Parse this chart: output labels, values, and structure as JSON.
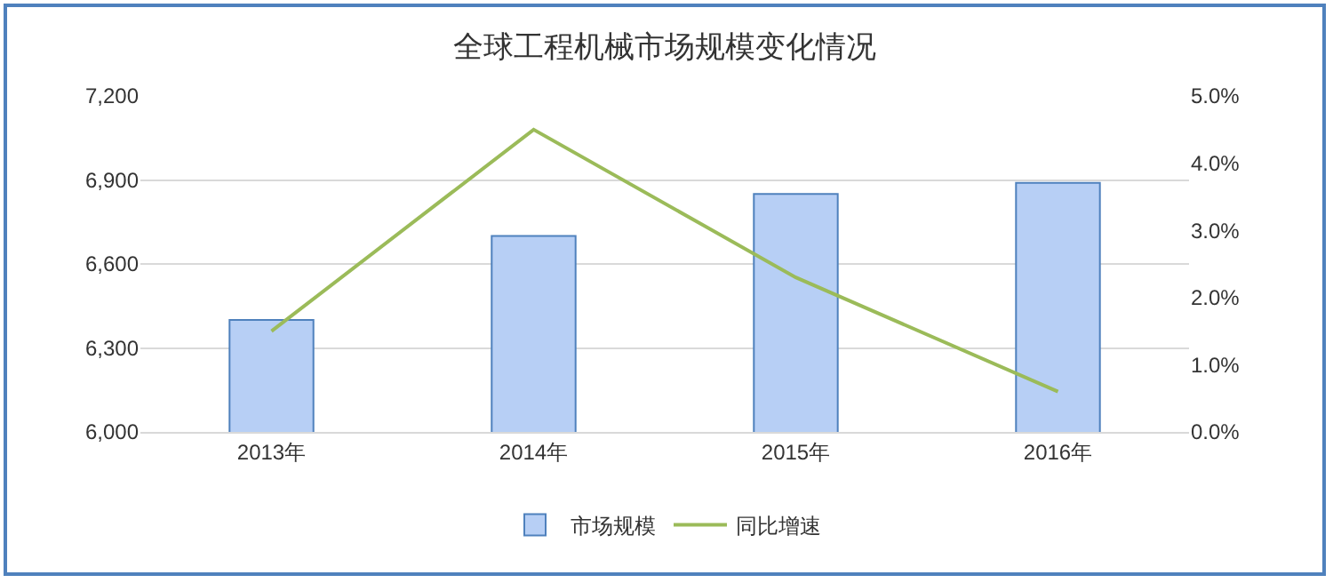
{
  "chart_data": {
    "type": "bar",
    "title": "全球工程机械市场规模变化情况",
    "categories": [
      "2013年",
      "2014年",
      "2015年",
      "2016年"
    ],
    "series": [
      {
        "name": "市场规模",
        "color": "#b7cff5",
        "values": [
          6400,
          6700,
          6850,
          6890
        ]
      },
      {
        "name": "同比增速",
        "type": "line",
        "axis": "y2",
        "color": "#9bbb59",
        "values": [
          1.5,
          4.5,
          2.3,
          0.6
        ]
      }
    ],
    "ylim": [
      6000,
      7200
    ],
    "yticks": [
      {
        "value": 6000,
        "label": "6,000"
      },
      {
        "value": 6300,
        "label": "6,300"
      },
      {
        "value": 6600,
        "label": "6,600"
      },
      {
        "value": 6900,
        "label": "6,900"
      },
      {
        "value": 7200,
        "label": "7,200"
      }
    ],
    "y2lim": [
      0,
      5
    ],
    "y2ticks": [
      {
        "value": 0,
        "label": "0.0%"
      },
      {
        "value": 1,
        "label": "1.0%"
      },
      {
        "value": 2,
        "label": "2.0%"
      },
      {
        "value": 3,
        "label": "3.0%"
      },
      {
        "value": 4,
        "label": "4.0%"
      },
      {
        "value": 5,
        "label": "5.0%"
      }
    ],
    "grid": "y",
    "legend": "bottom",
    "marker": "none",
    "line_style": "solid"
  }
}
